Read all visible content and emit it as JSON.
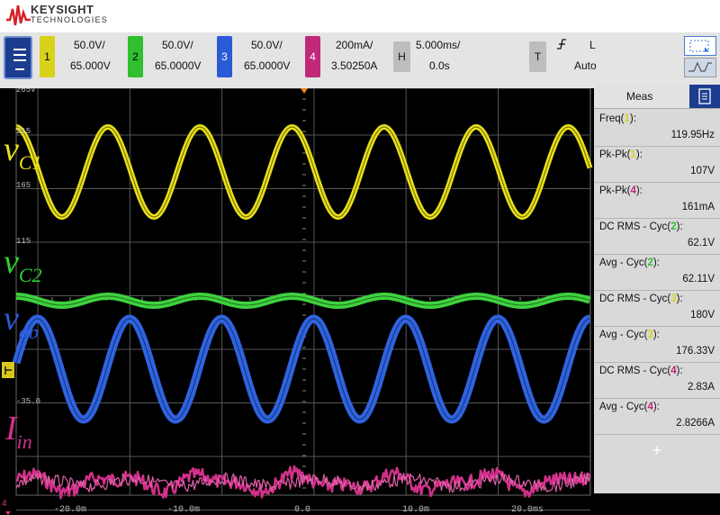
{
  "brand": {
    "name": "KEYSIGHT",
    "sub": "TECHNOLOGIES"
  },
  "channels": [
    {
      "num": "1",
      "scale": "50.0V/",
      "offset": "65.000V",
      "color": "#d8d21a"
    },
    {
      "num": "2",
      "scale": "50.0V/",
      "offset": "65.0000V",
      "color": "#2fbf2f"
    },
    {
      "num": "3",
      "scale": "50.0V/",
      "offset": "65.0000V",
      "color": "#2a5bd6"
    },
    {
      "num": "4",
      "scale": "200mA/",
      "offset": "3.50250A",
      "color": "#c0287a"
    }
  ],
  "horizontal": {
    "label": "H",
    "scale": "5.000ms/",
    "delay": "0.0s"
  },
  "trigger": {
    "label": "T",
    "slope": "∕̵",
    "level": "L",
    "mode": "Auto"
  },
  "scope": {
    "ylabels": [
      "265V",
      "215",
      "165",
      "115",
      "-35.0"
    ],
    "xlabels": [
      "-20.0m",
      "-10.0m",
      "0.0",
      "10.0m",
      "20.0ms"
    ],
    "trace_labels": [
      {
        "main": "v",
        "sub": "C1",
        "color": "#e8e01a"
      },
      {
        "main": "v",
        "sub": "C2",
        "color": "#2fd02f"
      },
      {
        "main": "v",
        "sub": "ab",
        "color": "#2a5bd6"
      },
      {
        "main": "I",
        "sub": "in",
        "color": "#d2308a"
      }
    ],
    "ch4_marker": "4"
  },
  "meas": {
    "title": "Meas",
    "rows": [
      {
        "label": "Freq(",
        "src": "1",
        "src_color": "#d8d21a",
        "value": "119.95Hz"
      },
      {
        "label": "Pk-Pk(",
        "src": "1",
        "src_color": "#d8d21a",
        "value": "107V"
      },
      {
        "label": "Pk-Pk(",
        "src": "4",
        "src_color": "#c0287a",
        "value": "161mA"
      },
      {
        "label": "DC RMS - Cyc(",
        "src": "2",
        "src_color": "#2fbf2f",
        "value": "62.1V"
      },
      {
        "label": "Avg - Cyc(",
        "src": "2",
        "src_color": "#2fbf2f",
        "value": "62.11V"
      },
      {
        "label": "DC RMS - Cyc(",
        "src": "3",
        "src_color": "#d8d21a",
        "value": "180V"
      },
      {
        "label": "Avg - Cyc(",
        "src": "3",
        "src_color": "#d8d21a",
        "value": "176.33V"
      },
      {
        "label": "DC RMS - Cyc(",
        "src": "4",
        "src_color": "#c0287a",
        "value": "2.83A"
      },
      {
        "label": "Avg - Cyc(",
        "src": "4",
        "src_color": "#c0287a",
        "value": "2.8266A"
      }
    ],
    "add": "+"
  }
}
